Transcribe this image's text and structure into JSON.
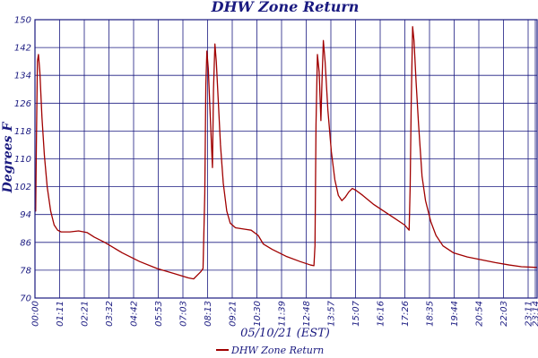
{
  "chart_data": {
    "type": "line",
    "title": "DHW Zone Return",
    "xlabel": "05/10/21 (EST)",
    "ylabel": "Degrees F",
    "ylim": [
      70,
      150
    ],
    "yticks": [
      "70",
      "78",
      "86",
      "94",
      "102",
      "110",
      "118",
      "126",
      "134",
      "142",
      "150"
    ],
    "xticks": [
      "00:00",
      "01:11",
      "02:21",
      "03:32",
      "04:42",
      "05:53",
      "07:03",
      "08:13",
      "09:21",
      "10:30",
      "11:39",
      "12:48",
      "13:57",
      "15:07",
      "16:16",
      "17:26",
      "18:35",
      "19:44",
      "20:54",
      "22:03",
      "23:11",
      "23:14"
    ],
    "x_unit": "minutes from 00:00",
    "xlim": [
      0,
      1440
    ],
    "grid": true,
    "legend_position": "bottom-center",
    "colors": {
      "line": "#a00000",
      "grid": "#1a1a80",
      "text": "#1a1a80"
    },
    "series": [
      {
        "name": "DHW Zone Return",
        "points": [
          [
            0,
            96
          ],
          [
            2,
            95
          ],
          [
            4,
            114
          ],
          [
            7,
            138
          ],
          [
            10,
            140
          ],
          [
            14,
            135
          ],
          [
            20,
            122
          ],
          [
            27,
            111
          ],
          [
            35,
            102
          ],
          [
            45,
            95
          ],
          [
            55,
            91
          ],
          [
            65,
            89.5
          ],
          [
            75,
            89
          ],
          [
            100,
            89
          ],
          [
            125,
            89.3
          ],
          [
            150,
            88.8
          ],
          [
            170,
            87.5
          ],
          [
            200,
            86
          ],
          [
            250,
            83
          ],
          [
            300,
            80.5
          ],
          [
            350,
            78.5
          ],
          [
            400,
            77
          ],
          [
            440,
            75.8
          ],
          [
            455,
            75.5
          ],
          [
            475,
            77.5
          ],
          [
            482,
            78.5
          ],
          [
            487,
            100
          ],
          [
            490,
            131
          ],
          [
            493,
            141
          ],
          [
            497,
            136
          ],
          [
            502,
            124
          ],
          [
            507,
            112
          ],
          [
            509,
            107.5
          ],
          [
            512,
            130
          ],
          [
            516,
            143
          ],
          [
            520,
            138
          ],
          [
            525,
            128
          ],
          [
            532,
            114
          ],
          [
            540,
            103
          ],
          [
            550,
            95
          ],
          [
            560,
            91.5
          ],
          [
            575,
            90.2
          ],
          [
            600,
            89.8
          ],
          [
            620,
            89.5
          ],
          [
            640,
            88
          ],
          [
            655,
            85.5
          ],
          [
            680,
            84
          ],
          [
            720,
            82
          ],
          [
            760,
            80.5
          ],
          [
            790,
            79.5
          ],
          [
            800,
            79.3
          ],
          [
            803,
            85
          ],
          [
            806,
            120
          ],
          [
            810,
            140
          ],
          [
            815,
            135
          ],
          [
            820,
            121
          ],
          [
            823,
            132
          ],
          [
            827,
            144
          ],
          [
            832,
            138
          ],
          [
            840,
            124
          ],
          [
            850,
            112
          ],
          [
            860,
            104
          ],
          [
            870,
            99.5
          ],
          [
            880,
            98
          ],
          [
            890,
            99
          ],
          [
            900,
            100.5
          ],
          [
            910,
            101.5
          ],
          [
            920,
            101
          ],
          [
            940,
            99.5
          ],
          [
            970,
            97
          ],
          [
            1000,
            95
          ],
          [
            1030,
            93
          ],
          [
            1060,
            91
          ],
          [
            1073,
            89.5
          ],
          [
            1076,
            102
          ],
          [
            1079,
            126
          ],
          [
            1083,
            148
          ],
          [
            1087,
            144
          ],
          [
            1093,
            132
          ],
          [
            1100,
            120
          ],
          [
            1110,
            105
          ],
          [
            1120,
            98
          ],
          [
            1135,
            92
          ],
          [
            1150,
            88
          ],
          [
            1170,
            85
          ],
          [
            1200,
            83
          ],
          [
            1240,
            81.8
          ],
          [
            1280,
            81
          ],
          [
            1320,
            80.2
          ],
          [
            1360,
            79.5
          ],
          [
            1395,
            79
          ],
          [
            1440,
            78.8
          ]
        ]
      }
    ]
  }
}
